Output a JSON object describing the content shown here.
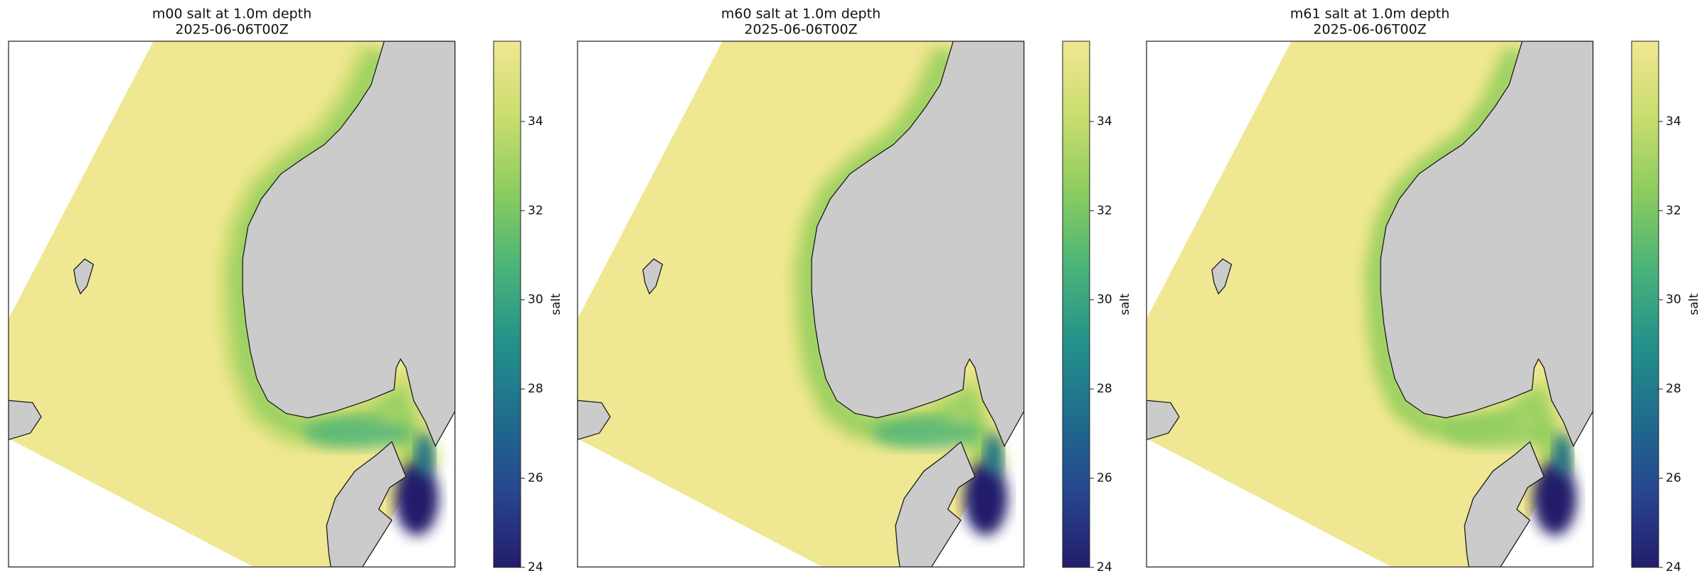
{
  "chart_data": [
    {
      "type": "map",
      "title": "m00 salt at 1.0m depth",
      "subtitle": "2025-06-06T00Z",
      "colorbar_label": "salt",
      "clim": [
        24,
        35.8
      ],
      "cticks": [
        24,
        26,
        28,
        30,
        32,
        34
      ],
      "colormap": [
        "#241c6b",
        "#27468f",
        "#1f6d8d",
        "#24928a",
        "#4bb479",
        "#8ccc5f",
        "#c9dd6e",
        "#f0e792"
      ]
    },
    {
      "type": "map",
      "title": "m60 salt at 1.0m depth",
      "subtitle": "2025-06-06T00Z",
      "colorbar_label": "salt",
      "clim": [
        24,
        35.8
      ],
      "cticks": [
        24,
        26,
        28,
        30,
        32,
        34
      ],
      "colormap": [
        "#241c6b",
        "#27468f",
        "#1f6d8d",
        "#24928a",
        "#4bb479",
        "#8ccc5f",
        "#c9dd6e",
        "#f0e792"
      ]
    },
    {
      "type": "map",
      "title": "m61 salt at 1.0m depth",
      "subtitle": "2025-06-06T00Z",
      "colorbar_label": "salt",
      "clim": [
        24,
        35.8
      ],
      "cticks": [
        24,
        26,
        28,
        30,
        32,
        34
      ],
      "colormap": [
        "#241c6b",
        "#27468f",
        "#1f6d8d",
        "#24928a",
        "#4bb479",
        "#8ccc5f",
        "#c9dd6e",
        "#f0e792"
      ]
    }
  ]
}
